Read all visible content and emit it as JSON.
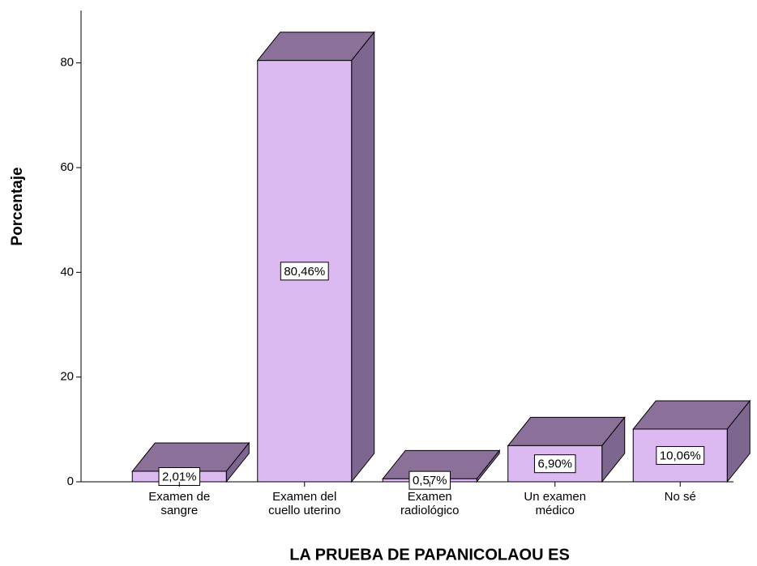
{
  "chart_data": {
    "type": "bar3d",
    "y_axis_label": "Porcentaje",
    "x_axis_label": "LA PRUEBA DE PAPANICOLAOU ES",
    "categories": [
      "Examen de\nsangre",
      "Examen del\ncuello uterino",
      "Examen\nradiológico",
      "Un examen\nmédico",
      "No sé"
    ],
    "values": [
      2.01,
      80.46,
      0.57,
      6.9,
      10.06
    ],
    "value_labels": [
      "2,01%",
      "80,46%",
      "0,57%",
      "6,90%",
      "10,06%"
    ],
    "color": "#dcb9f0",
    "top_color": "#8b7099",
    "side_color": "#7d6690",
    "ylim": [
      0,
      90
    ],
    "yticks": [
      0,
      20,
      40,
      60,
      80
    ]
  }
}
